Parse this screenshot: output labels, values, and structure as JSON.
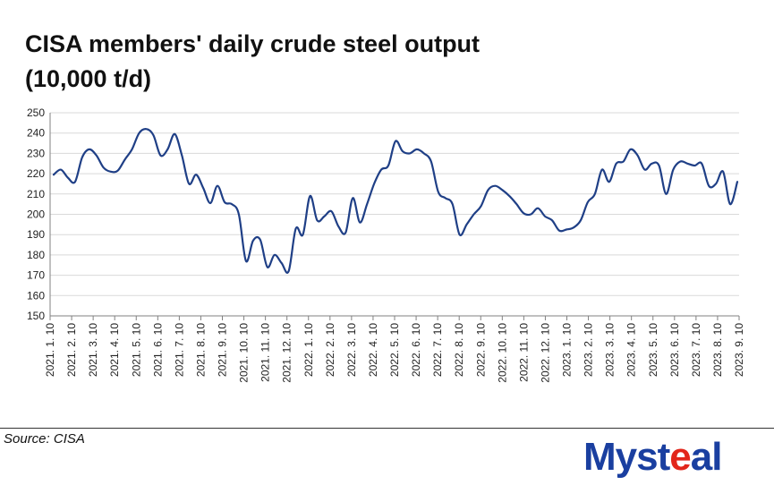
{
  "title_line1": "CISA members' daily crude steel output",
  "title_line2": "(10,000 t/d)",
  "source": "Source: CISA",
  "logo": {
    "text_a": "Myst",
    "text_b": "e",
    "text_c": "al"
  },
  "colors": {
    "line": "#1f3f86",
    "grid": "#d9d9d9",
    "axis": "#808080",
    "logo_blue": "#1a3fa0",
    "logo_red": "#e2261b"
  },
  "chart_data": {
    "type": "line",
    "title": "CISA members' daily crude steel output (10,000 t/d)",
    "xlabel": "",
    "ylabel": "",
    "ylim": [
      150,
      250
    ],
    "yticks": [
      150,
      160,
      170,
      180,
      190,
      200,
      210,
      220,
      230,
      240,
      250
    ],
    "xticks": [
      "2021. 1. 10",
      "2021. 2. 10",
      "2021. 3. 10",
      "2021. 4. 10",
      "2021. 5. 10",
      "2021. 6. 10",
      "2021. 7. 10",
      "2021. 8. 10",
      "2021. 9. 10",
      "2021. 10. 10",
      "2021. 11. 10",
      "2021. 12. 10",
      "2022. 1. 10",
      "2022. 2. 10",
      "2022. 3. 10",
      "2022. 4. 10",
      "2022. 5. 10",
      "2022. 6. 10",
      "2022. 7. 10",
      "2022. 8. 10",
      "2022. 9. 10",
      "2022. 10. 10",
      "2022. 11. 10",
      "2022. 12. 10",
      "2023. 1. 10",
      "2023. 2. 10",
      "2023. 3. 10",
      "2023. 4. 10",
      "2023. 5. 10",
      "2023. 6. 10",
      "2023. 7. 10",
      "2023. 8. 10",
      "2023. 9. 10"
    ],
    "grid": true,
    "legend": "none",
    "series": [
      {
        "values": [
          219.5,
          222,
          218,
          216,
          228,
          232,
          229,
          223,
          221,
          221.5,
          227,
          232,
          240,
          242,
          239,
          229,
          232,
          239.5,
          229,
          215,
          219.5,
          213,
          205.5,
          214,
          206,
          205,
          200,
          177,
          187,
          187.5,
          174,
          180,
          176,
          172,
          193,
          190,
          209,
          197,
          199,
          201.5,
          194,
          191,
          208,
          196,
          205,
          215,
          222,
          224,
          236,
          231,
          230,
          232,
          230,
          226,
          211,
          208,
          205,
          190,
          195,
          200,
          204,
          212,
          214,
          212,
          209,
          205,
          200.5,
          200,
          203,
          199,
          197,
          192,
          192.5,
          193.5,
          197,
          206,
          210,
          222,
          216,
          225,
          226,
          232,
          229,
          222,
          225,
          224,
          210,
          222,
          226,
          225,
          224,
          225,
          214,
          215,
          221,
          205,
          216
        ]
      }
    ]
  }
}
